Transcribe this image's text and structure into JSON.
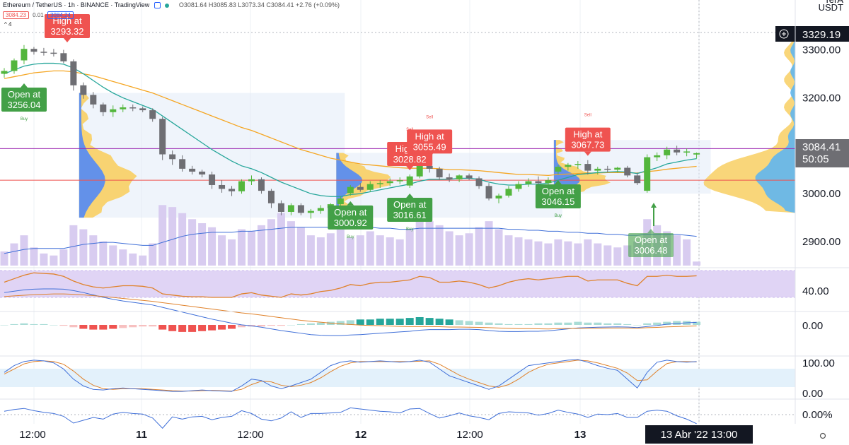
{
  "header": {
    "symbol": "Ethereum / TetherUS",
    "interval": "1h",
    "exchange": "BINANCE",
    "source": "TradingView",
    "ohlc": "O3081.64 H3085.83 L3073.34 C3084.41 +2.76 (+0.09%)",
    "bid": "3084.23",
    "spread": "0.01",
    "ask": "3084.24",
    "collapse": "^ 4"
  },
  "unit_top": "USDT",
  "unit_upper": "TerA",
  "current_price": "3084.41",
  "countdown": "50:05",
  "crosshair_price": "3329.19",
  "crosshair_date": "13 Abr '22   13:00",
  "colors": {
    "up": "#53b63c",
    "down": "#6e6e73",
    "buy": "#43a047",
    "sell": "#ef5350",
    "ema_fast": "#26a69a",
    "ema_slow": "#f5a623",
    "volume": "#d8ccf0",
    "macd_up": "#26a69a",
    "macd_down": "#ef5350"
  },
  "chart_data": {
    "type": "candlestick",
    "price_axis": {
      "ticks": [
        3000.0,
        3100.0,
        3200.0,
        3300.0,
        2900.0
      ],
      "labels": [
        "3000.00",
        "3100.00",
        "3200.00",
        "3300.00",
        "2900.00"
      ],
      "range": [
        2850,
        3345
      ]
    },
    "time_axis": {
      "labels": [
        "12:00",
        "11",
        "12:00",
        "12",
        "12:00",
        "13",
        "13:00"
      ]
    },
    "candles": [
      [
        3250,
        3262,
        3242,
        3256
      ],
      [
        3256,
        3282,
        3250,
        3278
      ],
      [
        3278,
        3310,
        3270,
        3302
      ],
      [
        3302,
        3306,
        3290,
        3296
      ],
      [
        3296,
        3304,
        3288,
        3294
      ],
      [
        3294,
        3302,
        3286,
        3293
      ],
      [
        3293,
        3300,
        3272,
        3276
      ],
      [
        3276,
        3280,
        3215,
        3226
      ],
      [
        3226,
        3232,
        3198,
        3206
      ],
      [
        3206,
        3212,
        3178,
        3186
      ],
      [
        3186,
        3190,
        3162,
        3170
      ],
      [
        3170,
        3184,
        3160,
        3176
      ],
      [
        3176,
        3186,
        3170,
        3180
      ],
      [
        3180,
        3186,
        3172,
        3178
      ],
      [
        3178,
        3182,
        3170,
        3174
      ],
      [
        3174,
        3178,
        3150,
        3156
      ],
      [
        3156,
        3160,
        3070,
        3082
      ],
      [
        3082,
        3090,
        3060,
        3072
      ],
      [
        3072,
        3080,
        3046,
        3052
      ],
      [
        3052,
        3058,
        3040,
        3046
      ],
      [
        3046,
        3050,
        3034,
        3040
      ],
      [
        3040,
        3046,
        3010,
        3018
      ],
      [
        3018,
        3028,
        3002,
        3010
      ],
      [
        3010,
        3016,
        2995,
        3005
      ],
      [
        3005,
        3030,
        3000,
        3026
      ],
      [
        3026,
        3038,
        3018,
        3030
      ],
      [
        3030,
        3034,
        3000,
        3006
      ],
      [
        3006,
        3010,
        2970,
        2980
      ],
      [
        2980,
        2986,
        2955,
        2962
      ],
      [
        2962,
        2980,
        2955,
        2976
      ],
      [
        2976,
        2980,
        2955,
        2960
      ],
      [
        2960,
        2968,
        2948,
        2964
      ],
      [
        2964,
        2976,
        2958,
        2970
      ],
      [
        2970,
        2980,
        2962,
        2978
      ],
      [
        2978,
        2994,
        2972,
        2990
      ],
      [
        3001,
        3018,
        2996,
        3014
      ],
      [
        3014,
        3022,
        3004,
        3008
      ],
      [
        3008,
        3026,
        3004,
        3020
      ],
      [
        3020,
        3028,
        3012,
        3022
      ],
      [
        3022,
        3032,
        3016,
        3026
      ],
      [
        3026,
        3034,
        3020,
        3028
      ],
      [
        3017,
        3040,
        3012,
        3036
      ],
      [
        3036,
        3062,
        3032,
        3058
      ],
      [
        3058,
        3066,
        3044,
        3052
      ],
      [
        3052,
        3056,
        3028,
        3034
      ],
      [
        3034,
        3042,
        3024,
        3030
      ],
      [
        3030,
        3040,
        3024,
        3038
      ],
      [
        3038,
        3042,
        3028,
        3032
      ],
      [
        3032,
        3036,
        3010,
        3016
      ],
      [
        3016,
        3022,
        2986,
        2990
      ],
      [
        2990,
        3000,
        2980,
        2996
      ],
      [
        2996,
        3016,
        2992,
        3010
      ],
      [
        3010,
        3026,
        3004,
        3020
      ],
      [
        3020,
        3032,
        3014,
        3026
      ],
      [
        3026,
        3036,
        3016,
        3022
      ],
      [
        3022,
        3034,
        3018,
        3028
      ],
      [
        3046,
        3060,
        3040,
        3056
      ],
      [
        3056,
        3064,
        3048,
        3060
      ],
      [
        3060,
        3068,
        3052,
        3062
      ],
      [
        3062,
        3070,
        3040,
        3048
      ],
      [
        3048,
        3056,
        3040,
        3052
      ],
      [
        3052,
        3058,
        3044,
        3050
      ],
      [
        3050,
        3056,
        3044,
        3054
      ],
      [
        3054,
        3058,
        3034,
        3038
      ],
      [
        3038,
        3044,
        3018,
        3022
      ],
      [
        3006,
        3082,
        3002,
        3076
      ],
      [
        3076,
        3086,
        3068,
        3080
      ],
      [
        3080,
        3098,
        3072,
        3092
      ],
      [
        3092,
        3100,
        3080,
        3086
      ],
      [
        3086,
        3094,
        3078,
        3088
      ],
      [
        3081.64,
        3085.83,
        3073.34,
        3084.41
      ]
    ],
    "ema_fast": [
      3250,
      3258,
      3266,
      3270,
      3272,
      3272,
      3270,
      3262,
      3250,
      3236,
      3222,
      3210,
      3200,
      3192,
      3184,
      3176,
      3162,
      3148,
      3134,
      3120,
      3106,
      3092,
      3080,
      3068,
      3058,
      3052,
      3044,
      3034,
      3024,
      3016,
      3008,
      3000,
      2996,
      2994,
      2994,
      2998,
      3000,
      3004,
      3008,
      3012,
      3016,
      3020,
      3026,
      3030,
      3030,
      3030,
      3032,
      3032,
      3030,
      3024,
      3020,
      3018,
      3018,
      3020,
      3020,
      3022,
      3028,
      3034,
      3040,
      3042,
      3044,
      3045,
      3046,
      3045,
      3042,
      3048,
      3054,
      3062,
      3066,
      3070,
      3073
    ],
    "ema_slow": [
      3240,
      3244,
      3248,
      3252,
      3254,
      3256,
      3256,
      3254,
      3250,
      3246,
      3240,
      3234,
      3228,
      3222,
      3216,
      3210,
      3202,
      3194,
      3186,
      3178,
      3170,
      3162,
      3154,
      3146,
      3138,
      3132,
      3124,
      3116,
      3108,
      3100,
      3092,
      3086,
      3080,
      3074,
      3070,
      3066,
      3062,
      3060,
      3058,
      3056,
      3054,
      3053,
      3053,
      3053,
      3052,
      3050,
      3050,
      3049,
      3048,
      3046,
      3044,
      3042,
      3040,
      3040,
      3039,
      3038,
      3040,
      3041,
      3042,
      3043,
      3043,
      3044,
      3044,
      3044,
      3043,
      3046,
      3048,
      3051,
      3053,
      3055,
      3057
    ],
    "volume": [
      14,
      22,
      30,
      18,
      12,
      10,
      16,
      40,
      36,
      30,
      24,
      20,
      16,
      12,
      10,
      22,
      60,
      58,
      52,
      46,
      42,
      38,
      30,
      26,
      36,
      34,
      40,
      46,
      52,
      44,
      38,
      30,
      28,
      32,
      36,
      28,
      30,
      34,
      30,
      28,
      26,
      36,
      48,
      44,
      40,
      34,
      30,
      32,
      38,
      44,
      36,
      30,
      28,
      26,
      24,
      22,
      26,
      24,
      22,
      26,
      22,
      20,
      18,
      20,
      24,
      46,
      40,
      34,
      30,
      26,
      4
    ],
    "volume_ma": [
      12,
      14,
      16,
      17,
      17,
      17,
      17,
      19,
      21,
      22,
      23,
      23,
      22,
      21,
      20,
      20,
      23,
      26,
      29,
      31,
      32,
      33,
      33,
      33,
      34,
      34,
      35,
      36,
      37,
      38,
      38,
      38,
      38,
      38,
      38,
      38,
      38,
      38,
      37,
      37,
      36,
      36,
      37,
      37,
      37,
      37,
      37,
      37,
      37,
      37,
      37,
      36,
      36,
      35,
      35,
      34,
      34,
      33,
      33,
      32,
      32,
      31,
      31,
      30,
      30,
      31,
      31,
      31,
      31,
      30,
      29
    ],
    "rsi_axis_label": "40.00",
    "rsi": [
      50,
      56,
      62,
      66,
      65,
      64,
      60,
      52,
      46,
      42,
      40,
      42,
      44,
      44,
      43,
      40,
      30,
      28,
      26,
      25,
      25,
      24,
      24,
      24,
      30,
      32,
      28,
      26,
      24,
      30,
      28,
      30,
      34,
      36,
      40,
      46,
      44,
      48,
      50,
      50,
      52,
      54,
      60,
      58,
      50,
      50,
      52,
      50,
      46,
      40,
      44,
      50,
      54,
      56,
      54,
      56,
      58,
      60,
      60,
      52,
      54,
      54,
      54,
      48,
      44,
      60,
      60,
      62,
      60,
      60,
      61
    ],
    "macd_axis_label": "0.00",
    "macd_hist": [
      0,
      1,
      2,
      1,
      1,
      0,
      -1,
      -3,
      -5,
      -6,
      -6,
      -5,
      -4,
      -3,
      -2,
      -2,
      -6,
      -8,
      -9,
      -9,
      -8,
      -7,
      -6,
      -5,
      -3,
      -2,
      -2,
      -1,
      -1,
      0,
      1,
      2,
      3,
      4,
      5,
      6,
      7,
      7,
      8,
      8,
      8,
      9,
      10,
      9,
      8,
      7,
      6,
      5,
      4,
      3,
      2,
      1,
      1,
      1,
      2,
      2,
      3,
      3,
      4,
      3,
      3,
      2,
      2,
      1,
      0,
      2,
      3,
      4,
      5,
      5,
      4
    ],
    "stoch_axis_labels": [
      "100.00",
      "0.00"
    ],
    "stoch_k": [
      60,
      80,
      92,
      96,
      94,
      88,
      70,
      40,
      20,
      10,
      8,
      12,
      14,
      12,
      10,
      8,
      6,
      4,
      4,
      6,
      8,
      6,
      5,
      4,
      20,
      40,
      36,
      20,
      12,
      20,
      30,
      40,
      60,
      80,
      90,
      94,
      90,
      92,
      94,
      92,
      90,
      92,
      96,
      90,
      70,
      50,
      40,
      30,
      20,
      10,
      20,
      40,
      60,
      80,
      84,
      88,
      92,
      96,
      98,
      90,
      80,
      72,
      66,
      40,
      14,
      60,
      90,
      96,
      92,
      90,
      92
    ],
    "stoch_d": [
      55,
      70,
      85,
      92,
      94,
      92,
      84,
      64,
      40,
      22,
      12,
      10,
      12,
      12,
      12,
      10,
      8,
      6,
      5,
      5,
      6,
      7,
      6,
      5,
      10,
      24,
      34,
      32,
      22,
      18,
      22,
      30,
      44,
      62,
      78,
      88,
      92,
      92,
      92,
      92,
      92,
      92,
      93,
      94,
      84,
      68,
      52,
      40,
      30,
      20,
      16,
      24,
      40,
      60,
      74,
      84,
      88,
      92,
      96,
      94,
      88,
      80,
      72,
      58,
      36,
      38,
      64,
      86,
      92,
      92,
      91
    ],
    "pct_axis_label": "0.00%",
    "pct_line": [
      0.6,
      0.9,
      1.1,
      0.7,
      0.4,
      0.2,
      -0.3,
      -1.5,
      -1.0,
      -0.5,
      -0.8,
      0.1,
      0.4,
      0.2,
      0.1,
      -0.6,
      -2.4,
      -0.4,
      -0.8,
      -0.4,
      -0.3,
      -0.9,
      -0.5,
      -0.3,
      0.7,
      0.2,
      -0.8,
      -1.1,
      -0.6,
      0.5,
      -0.5,
      0.2,
      0.2,
      0.3,
      0.4,
      1.2,
      1.0,
      0.8,
      0.6,
      0.5,
      0.3,
      1.0,
      1.1,
      0.2,
      -0.6,
      -0.2,
      0.3,
      -0.2,
      -0.5,
      -0.9,
      0.2,
      0.5,
      0.4,
      0.3,
      -0.1,
      0.2,
      0.8,
      0.4,
      0.1,
      -0.5,
      0.1,
      0.0,
      0.2,
      -0.5,
      -0.5,
      0.6,
      0.8,
      0.6,
      -0.2,
      -0.8,
      -1.6
    ],
    "horizontal_lines": [
      {
        "price": 3094,
        "color": "#9c27b0"
      },
      {
        "price": 3028,
        "color": "#ef5350"
      }
    ],
    "signals": [
      {
        "kind": "open",
        "text": [
          "Open at",
          "3256.04"
        ],
        "index": 1,
        "side": "Buy"
      },
      {
        "kind": "high",
        "text": [
          "High at",
          "3293.32"
        ],
        "index": 6,
        "side": ""
      },
      {
        "kind": "open",
        "text": [
          "Open at",
          "3000.92"
        ],
        "index": 35,
        "side": "Buy"
      },
      {
        "kind": "high",
        "text": [
          "High at",
          "3028.82"
        ],
        "index": 41,
        "side": "Sell"
      },
      {
        "kind": "open",
        "text": [
          "Open at",
          "3016.61"
        ],
        "index": 41,
        "side": "Buy"
      },
      {
        "kind": "high",
        "text": [
          "High at",
          "3055.49"
        ],
        "index": 43,
        "side": "Sell"
      },
      {
        "kind": "open",
        "text": [
          "Open at",
          "3046.15"
        ],
        "index": 56,
        "side": "Buy"
      },
      {
        "kind": "high",
        "text": [
          "High at",
          "3067.73"
        ],
        "index": 59,
        "side": "Sell"
      },
      {
        "kind": "open",
        "text": [
          "Open at",
          "3006.48"
        ],
        "index": 65,
        "side": ""
      }
    ],
    "volume_profiles": [
      {
        "from": 8,
        "to": 34,
        "low": 2950,
        "high": 3210
      },
      {
        "from": 34,
        "to": 56,
        "low": 2950,
        "high": 3085
      },
      {
        "from": 56,
        "to": 71,
        "low": 3000,
        "high": 3112
      }
    ]
  }
}
